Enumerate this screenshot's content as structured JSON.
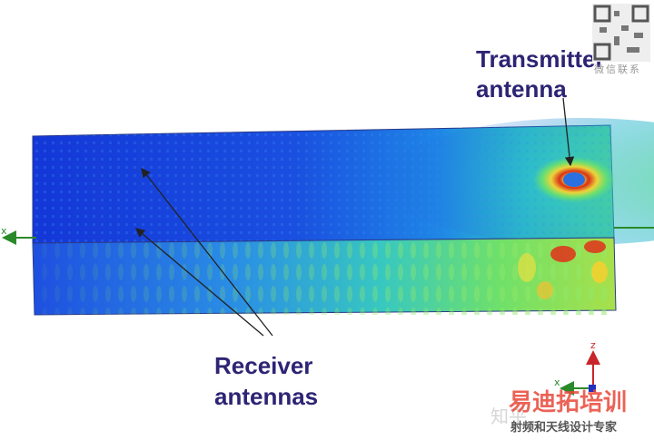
{
  "transmitter_label": {
    "line1": "Transmitter",
    "line2": "antenna"
  },
  "receiver_label": {
    "line1": "Receiver",
    "line2": "antennas"
  },
  "axes": {
    "left_x": "x",
    "triad_z": "z",
    "triad_x": "x"
  },
  "watermark": {
    "brand": "易迪拓培训",
    "tagline": "射频和天线设计专家",
    "wechat": "微信联系",
    "site": "知乎"
  }
}
